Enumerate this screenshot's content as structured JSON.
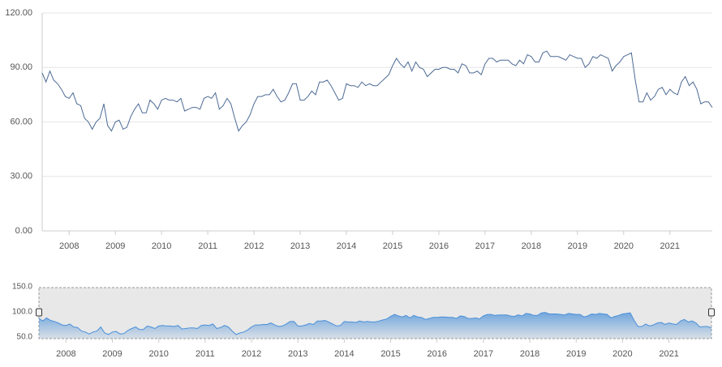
{
  "chart_data": {
    "type": "line",
    "x": [
      "2007-06",
      "2007-07",
      "2007-08",
      "2007-09",
      "2007-10",
      "2007-11",
      "2007-12",
      "2008-01",
      "2008-02",
      "2008-03",
      "2008-04",
      "2008-05",
      "2008-06",
      "2008-07",
      "2008-08",
      "2008-09",
      "2008-10",
      "2008-11",
      "2008-12",
      "2009-01",
      "2009-02",
      "2009-03",
      "2009-04",
      "2009-05",
      "2009-06",
      "2009-07",
      "2009-08",
      "2009-09",
      "2009-10",
      "2009-11",
      "2009-12",
      "2010-01",
      "2010-02",
      "2010-03",
      "2010-04",
      "2010-05",
      "2010-06",
      "2010-07",
      "2010-08",
      "2010-09",
      "2010-10",
      "2010-11",
      "2010-12",
      "2011-01",
      "2011-02",
      "2011-03",
      "2011-04",
      "2011-05",
      "2011-06",
      "2011-07",
      "2011-08",
      "2011-09",
      "2011-10",
      "2011-11",
      "2011-12",
      "2012-01",
      "2012-02",
      "2012-03",
      "2012-04",
      "2012-05",
      "2012-06",
      "2012-07",
      "2012-08",
      "2012-09",
      "2012-10",
      "2012-11",
      "2012-12",
      "2013-01",
      "2013-02",
      "2013-03",
      "2013-04",
      "2013-05",
      "2013-06",
      "2013-07",
      "2013-08",
      "2013-09",
      "2013-10",
      "2013-11",
      "2013-12",
      "2014-01",
      "2014-02",
      "2014-03",
      "2014-04",
      "2014-05",
      "2014-06",
      "2014-07",
      "2014-08",
      "2014-09",
      "2014-10",
      "2014-11",
      "2014-12",
      "2015-01",
      "2015-02",
      "2015-03",
      "2015-04",
      "2015-05",
      "2015-06",
      "2015-07",
      "2015-08",
      "2015-09",
      "2015-10",
      "2015-11",
      "2015-12",
      "2016-01",
      "2016-02",
      "2016-03",
      "2016-04",
      "2016-05",
      "2016-06",
      "2016-07",
      "2016-08",
      "2016-09",
      "2016-10",
      "2016-11",
      "2016-12",
      "2017-01",
      "2017-02",
      "2017-03",
      "2017-04",
      "2017-05",
      "2017-06",
      "2017-07",
      "2017-08",
      "2017-09",
      "2017-10",
      "2017-11",
      "2017-12",
      "2018-01",
      "2018-02",
      "2018-03",
      "2018-04",
      "2018-05",
      "2018-06",
      "2018-07",
      "2018-08",
      "2018-09",
      "2018-10",
      "2018-11",
      "2018-12",
      "2019-01",
      "2019-02",
      "2019-03",
      "2019-04",
      "2019-05",
      "2019-06",
      "2019-07",
      "2019-08",
      "2019-09",
      "2019-10",
      "2019-11",
      "2019-12",
      "2020-01",
      "2020-02",
      "2020-03",
      "2020-04",
      "2020-05",
      "2020-06",
      "2020-07",
      "2020-08",
      "2020-09",
      "2020-10",
      "2020-11",
      "2020-12",
      "2021-01",
      "2021-02",
      "2021-03",
      "2021-04",
      "2021-05",
      "2021-06",
      "2021-07",
      "2021-08",
      "2021-09",
      "2021-10",
      "2021-11",
      "2021-12"
    ],
    "series": [
      {
        "color": "#4d6a94",
        "values": [
          87,
          82,
          88,
          83,
          81,
          78,
          74,
          73,
          76,
          70,
          69,
          62,
          60,
          56,
          60,
          62,
          70,
          58,
          55,
          60,
          61,
          56,
          57,
          63,
          67,
          70,
          65,
          65,
          72,
          70,
          67,
          72,
          73,
          72,
          72,
          71,
          73,
          66,
          67,
          68,
          68,
          67,
          73,
          74,
          73,
          76,
          67,
          69,
          73,
          70,
          62,
          55,
          58,
          60,
          64,
          70,
          74,
          74,
          75,
          75,
          78,
          74,
          71,
          72,
          76,
          81,
          81,
          72,
          72,
          74,
          77,
          75,
          82,
          82,
          83,
          80,
          76,
          72,
          73,
          81,
          80,
          80,
          79,
          82,
          80,
          81,
          80,
          80,
          82,
          84,
          86,
          91,
          95,
          92,
          90,
          93,
          88,
          93,
          90,
          89,
          85,
          87,
          89,
          89,
          90,
          90,
          89,
          89,
          87,
          92,
          91,
          87,
          87,
          88,
          86,
          92,
          95,
          95,
          93,
          94,
          94,
          94,
          92,
          91,
          94,
          92,
          97,
          96,
          93,
          93,
          98,
          99,
          96,
          96,
          96,
          95,
          94,
          97,
          96,
          95,
          95,
          90,
          92,
          96,
          95,
          97,
          96,
          95,
          88,
          91,
          93,
          96,
          97,
          98,
          83,
          71,
          71,
          76,
          72,
          74,
          78,
          79,
          75,
          78,
          76,
          75,
          82,
          85,
          80,
          82,
          78,
          70,
          71,
          71,
          68
        ]
      }
    ],
    "ylim": [
      0,
      120
    ],
    "yticks": [
      {
        "value": 0,
        "label": "0.00"
      },
      {
        "value": 30,
        "label": "30.00"
      },
      {
        "value": 60,
        "label": "60.00"
      },
      {
        "value": 90,
        "label": "90.00"
      },
      {
        "value": 120,
        "label": "120.00"
      }
    ],
    "xticks": [
      2008,
      2009,
      2010,
      2011,
      2012,
      2013,
      2014,
      2015,
      2016,
      2017,
      2018,
      2019,
      2020,
      2021
    ],
    "grid": true,
    "navigator": {
      "ylim": [
        50,
        150
      ],
      "yticks": [
        {
          "value": 50,
          "label": "50.0"
        },
        {
          "value": 100,
          "label": "100.0"
        },
        {
          "value": 150,
          "label": "150.0"
        }
      ],
      "color": "#4a90d9"
    }
  }
}
